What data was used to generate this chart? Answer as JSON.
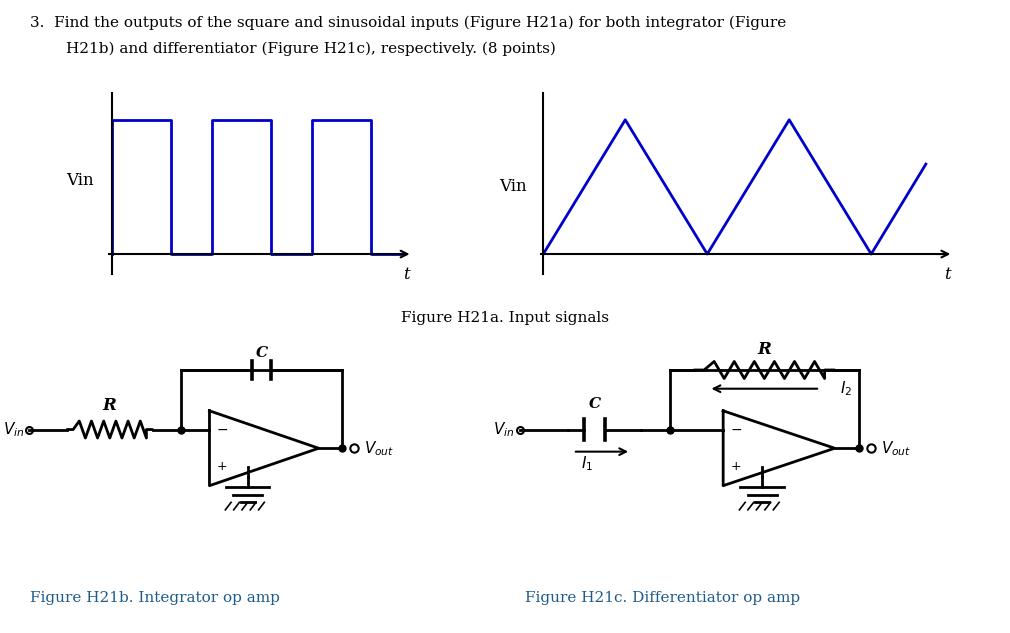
{
  "fig_caption_a": "Figure H21a. Input signals",
  "fig_caption_b": "Figure H21b. Integrator op amp",
  "fig_caption_c": "Figure H21c. Differentiator op amp",
  "blue_color": "#0000CC",
  "black_color": "#000000",
  "caption_color": "#1F5C8B",
  "bg_color": "#FFFFFF",
  "line_width": 2.0,
  "circuit_lw": 2.0
}
